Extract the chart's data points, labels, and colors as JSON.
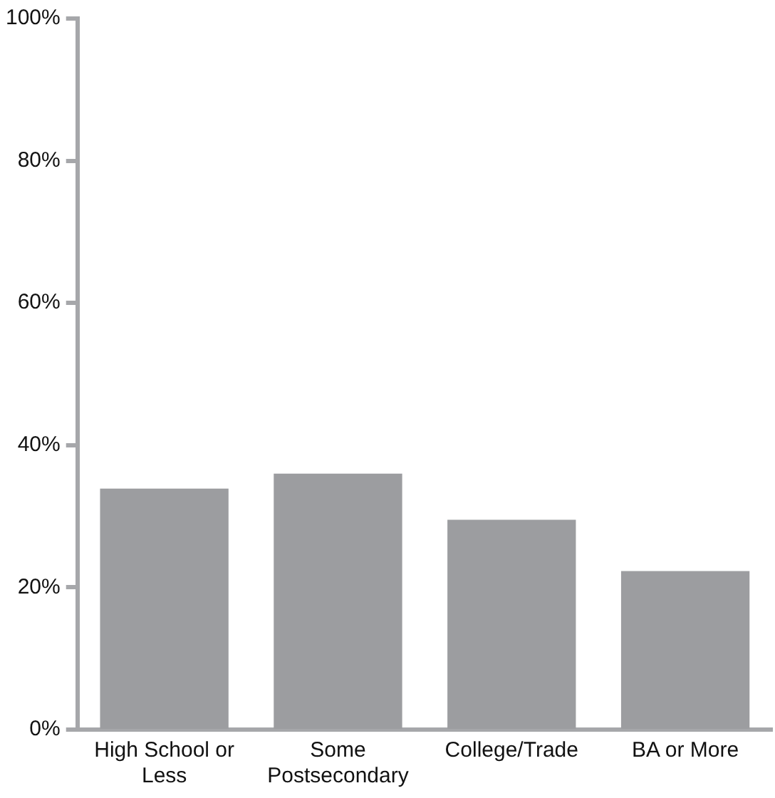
{
  "chart_data": {
    "type": "bar",
    "categories": [
      "High School or Less",
      "Some Postsecondary",
      "College/Trade",
      "BA or More"
    ],
    "values": [
      33.9,
      36,
      29.5,
      22.3
    ],
    "color": "#9c9da0",
    "ylim": [
      0,
      100
    ],
    "yticks": [
      {
        "value": 0,
        "label": "0%"
      },
      {
        "value": 20,
        "label": "20%"
      },
      {
        "value": 40,
        "label": "40%"
      },
      {
        "value": 60,
        "label": "60%"
      },
      {
        "value": 80,
        "label": "80%"
      },
      {
        "value": 100,
        "label": "100%"
      }
    ],
    "grid": false,
    "legend": false
  }
}
